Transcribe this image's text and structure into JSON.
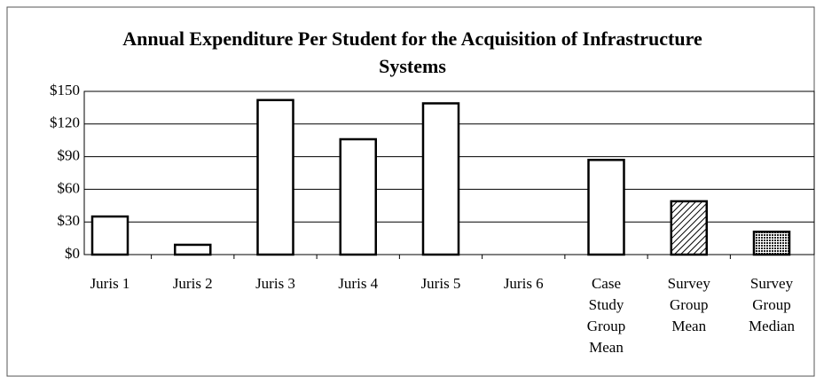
{
  "chart_data": {
    "type": "bar",
    "title": "Annual Expenditure Per Student for the Acquisition of Infrastructure Systems",
    "categories": [
      "Juris 1",
      "Juris 2",
      "Juris 3",
      "Juris 4",
      "Juris 5",
      "Juris 6",
      "Case Study Group Mean",
      "Survey Group Mean",
      "Survey Group Median"
    ],
    "values": [
      35,
      9,
      142,
      106,
      139,
      0,
      87,
      49,
      21
    ],
    "color": "#ffffff",
    "fills": [
      "plain",
      "plain",
      "plain",
      "plain",
      "plain",
      "plain",
      "plain",
      "hatch",
      "dots"
    ],
    "ylim": [
      0,
      150
    ],
    "yticks": [
      {
        "value": 0,
        "label": "$0"
      },
      {
        "value": 30,
        "label": "$30"
      },
      {
        "value": 60,
        "label": "$60"
      },
      {
        "value": 90,
        "label": "$90"
      },
      {
        "value": 120,
        "label": "$120"
      },
      {
        "value": 150,
        "label": "$150"
      }
    ],
    "grid": true
  }
}
